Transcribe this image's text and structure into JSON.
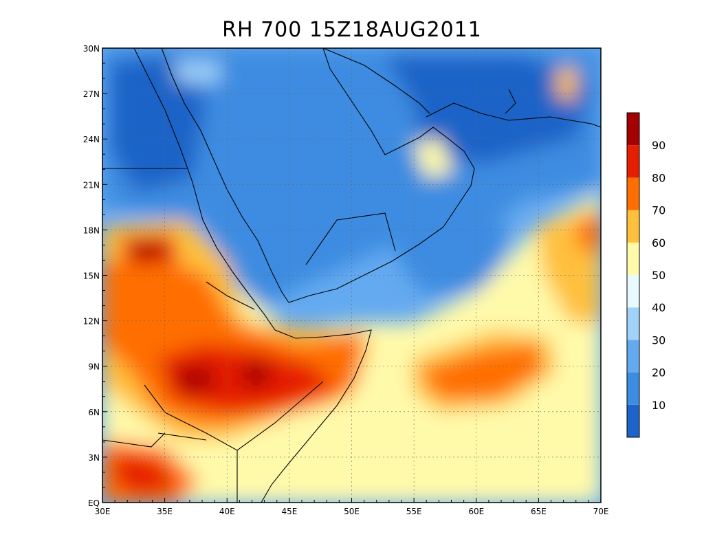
{
  "title": "RH 700 15Z18AUG2011",
  "map": {
    "lon_range": [
      30,
      70
    ],
    "lat_range": [
      0,
      30
    ],
    "grid": true,
    "x_tick_labels": [
      "30E",
      "35E",
      "40E",
      "45E",
      "50E",
      "55E",
      "60E",
      "65E",
      "70E"
    ],
    "y_tick_labels": [
      "EQ",
      "3N",
      "6N",
      "9N",
      "12N",
      "15N",
      "18N",
      "21N",
      "24N",
      "27N",
      "30N"
    ]
  },
  "colorbar": {
    "labels": [
      "10",
      "20",
      "30",
      "40",
      "50",
      "60",
      "70",
      "80",
      "90"
    ],
    "colors": [
      "#1e64c8",
      "#3c8ce1",
      "#64aaf0",
      "#a0d2fa",
      "#e6faff",
      "#fffaaa",
      "#ffc03c",
      "#ff6e00",
      "#e61e00",
      "#a50000"
    ],
    "placement": "right"
  }
}
